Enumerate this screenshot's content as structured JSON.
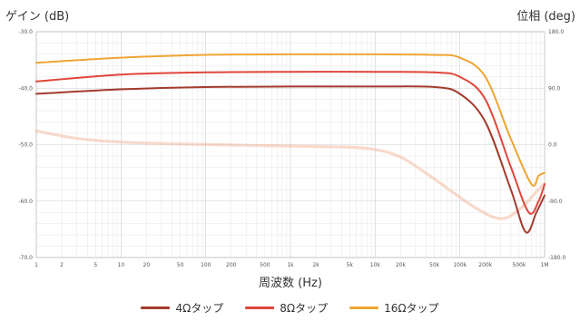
{
  "chart_data": {
    "type": "line",
    "title": "",
    "ylabel": "ゲイン (dB)",
    "y2label": "位相 (deg)",
    "xlabel": "周波数 (Hz)",
    "xscale": "log",
    "xlim": [
      1,
      1000000
    ],
    "ylim": [
      -70,
      -30
    ],
    "y2lim": [
      -180,
      180
    ],
    "grid": true,
    "legend_position": "bottom",
    "x_ticks": [
      "1",
      "2",
      "5",
      "10",
      "20",
      "50",
      "100",
      "200",
      "500",
      "1k",
      "2k",
      "5k",
      "10k",
      "20k",
      "50k",
      "100k",
      "200k",
      "500k",
      "1M"
    ],
    "y_ticks": [
      "-30.0",
      "-40.0",
      "-50.0",
      "-60.0",
      "-70.0"
    ],
    "y2_ticks": [
      "180.0",
      "90.0",
      "0.0",
      "-90.0",
      "-180.0"
    ],
    "series": [
      {
        "name": "4Ωタップ",
        "color": "#a33a2c",
        "axis": "gain",
        "points": [
          [
            1,
            -41
          ],
          [
            10,
            -40.2
          ],
          [
            100,
            -39.8
          ],
          [
            1000,
            -39.7
          ],
          [
            10000,
            -39.7
          ],
          [
            50000,
            -39.8
          ],
          [
            100000,
            -41
          ],
          [
            200000,
            -46
          ],
          [
            400000,
            -58
          ],
          [
            600000,
            -65.5
          ],
          [
            800000,
            -62
          ],
          [
            1000000,
            -59
          ]
        ]
      },
      {
        "name": "8Ωタップ",
        "color": "#e0463a",
        "axis": "gain",
        "points": [
          [
            1,
            -38.8
          ],
          [
            10,
            -37.6
          ],
          [
            100,
            -37.2
          ],
          [
            1000,
            -37.1
          ],
          [
            10000,
            -37.1
          ],
          [
            50000,
            -37.2
          ],
          [
            100000,
            -38
          ],
          [
            200000,
            -42
          ],
          [
            400000,
            -54
          ],
          [
            650000,
            -62
          ],
          [
            850000,
            -60
          ],
          [
            1000000,
            -57
          ]
        ]
      },
      {
        "name": "16Ωタップ",
        "color": "#f0a533",
        "axis": "gain",
        "points": [
          [
            1,
            -35.5
          ],
          [
            10,
            -34.6
          ],
          [
            100,
            -34.1
          ],
          [
            1000,
            -34
          ],
          [
            10000,
            -34
          ],
          [
            50000,
            -34.1
          ],
          [
            100000,
            -34.6
          ],
          [
            200000,
            -38
          ],
          [
            400000,
            -49
          ],
          [
            700000,
            -57
          ],
          [
            850000,
            -55.5
          ],
          [
            1000000,
            -55
          ]
        ]
      },
      {
        "name": "",
        "color": "#f3b9a2",
        "axis": "phase",
        "points": [
          [
            1,
            22
          ],
          [
            3,
            10
          ],
          [
            10,
            4
          ],
          [
            50,
            1
          ],
          [
            300,
            -1
          ],
          [
            2000,
            -3
          ],
          [
            8000,
            -6
          ],
          [
            20000,
            -20
          ],
          [
            50000,
            -55
          ],
          [
            150000,
            -100
          ],
          [
            300000,
            -118
          ],
          [
            500000,
            -104
          ],
          [
            800000,
            -75
          ],
          [
            1000000,
            -62
          ]
        ]
      }
    ]
  }
}
